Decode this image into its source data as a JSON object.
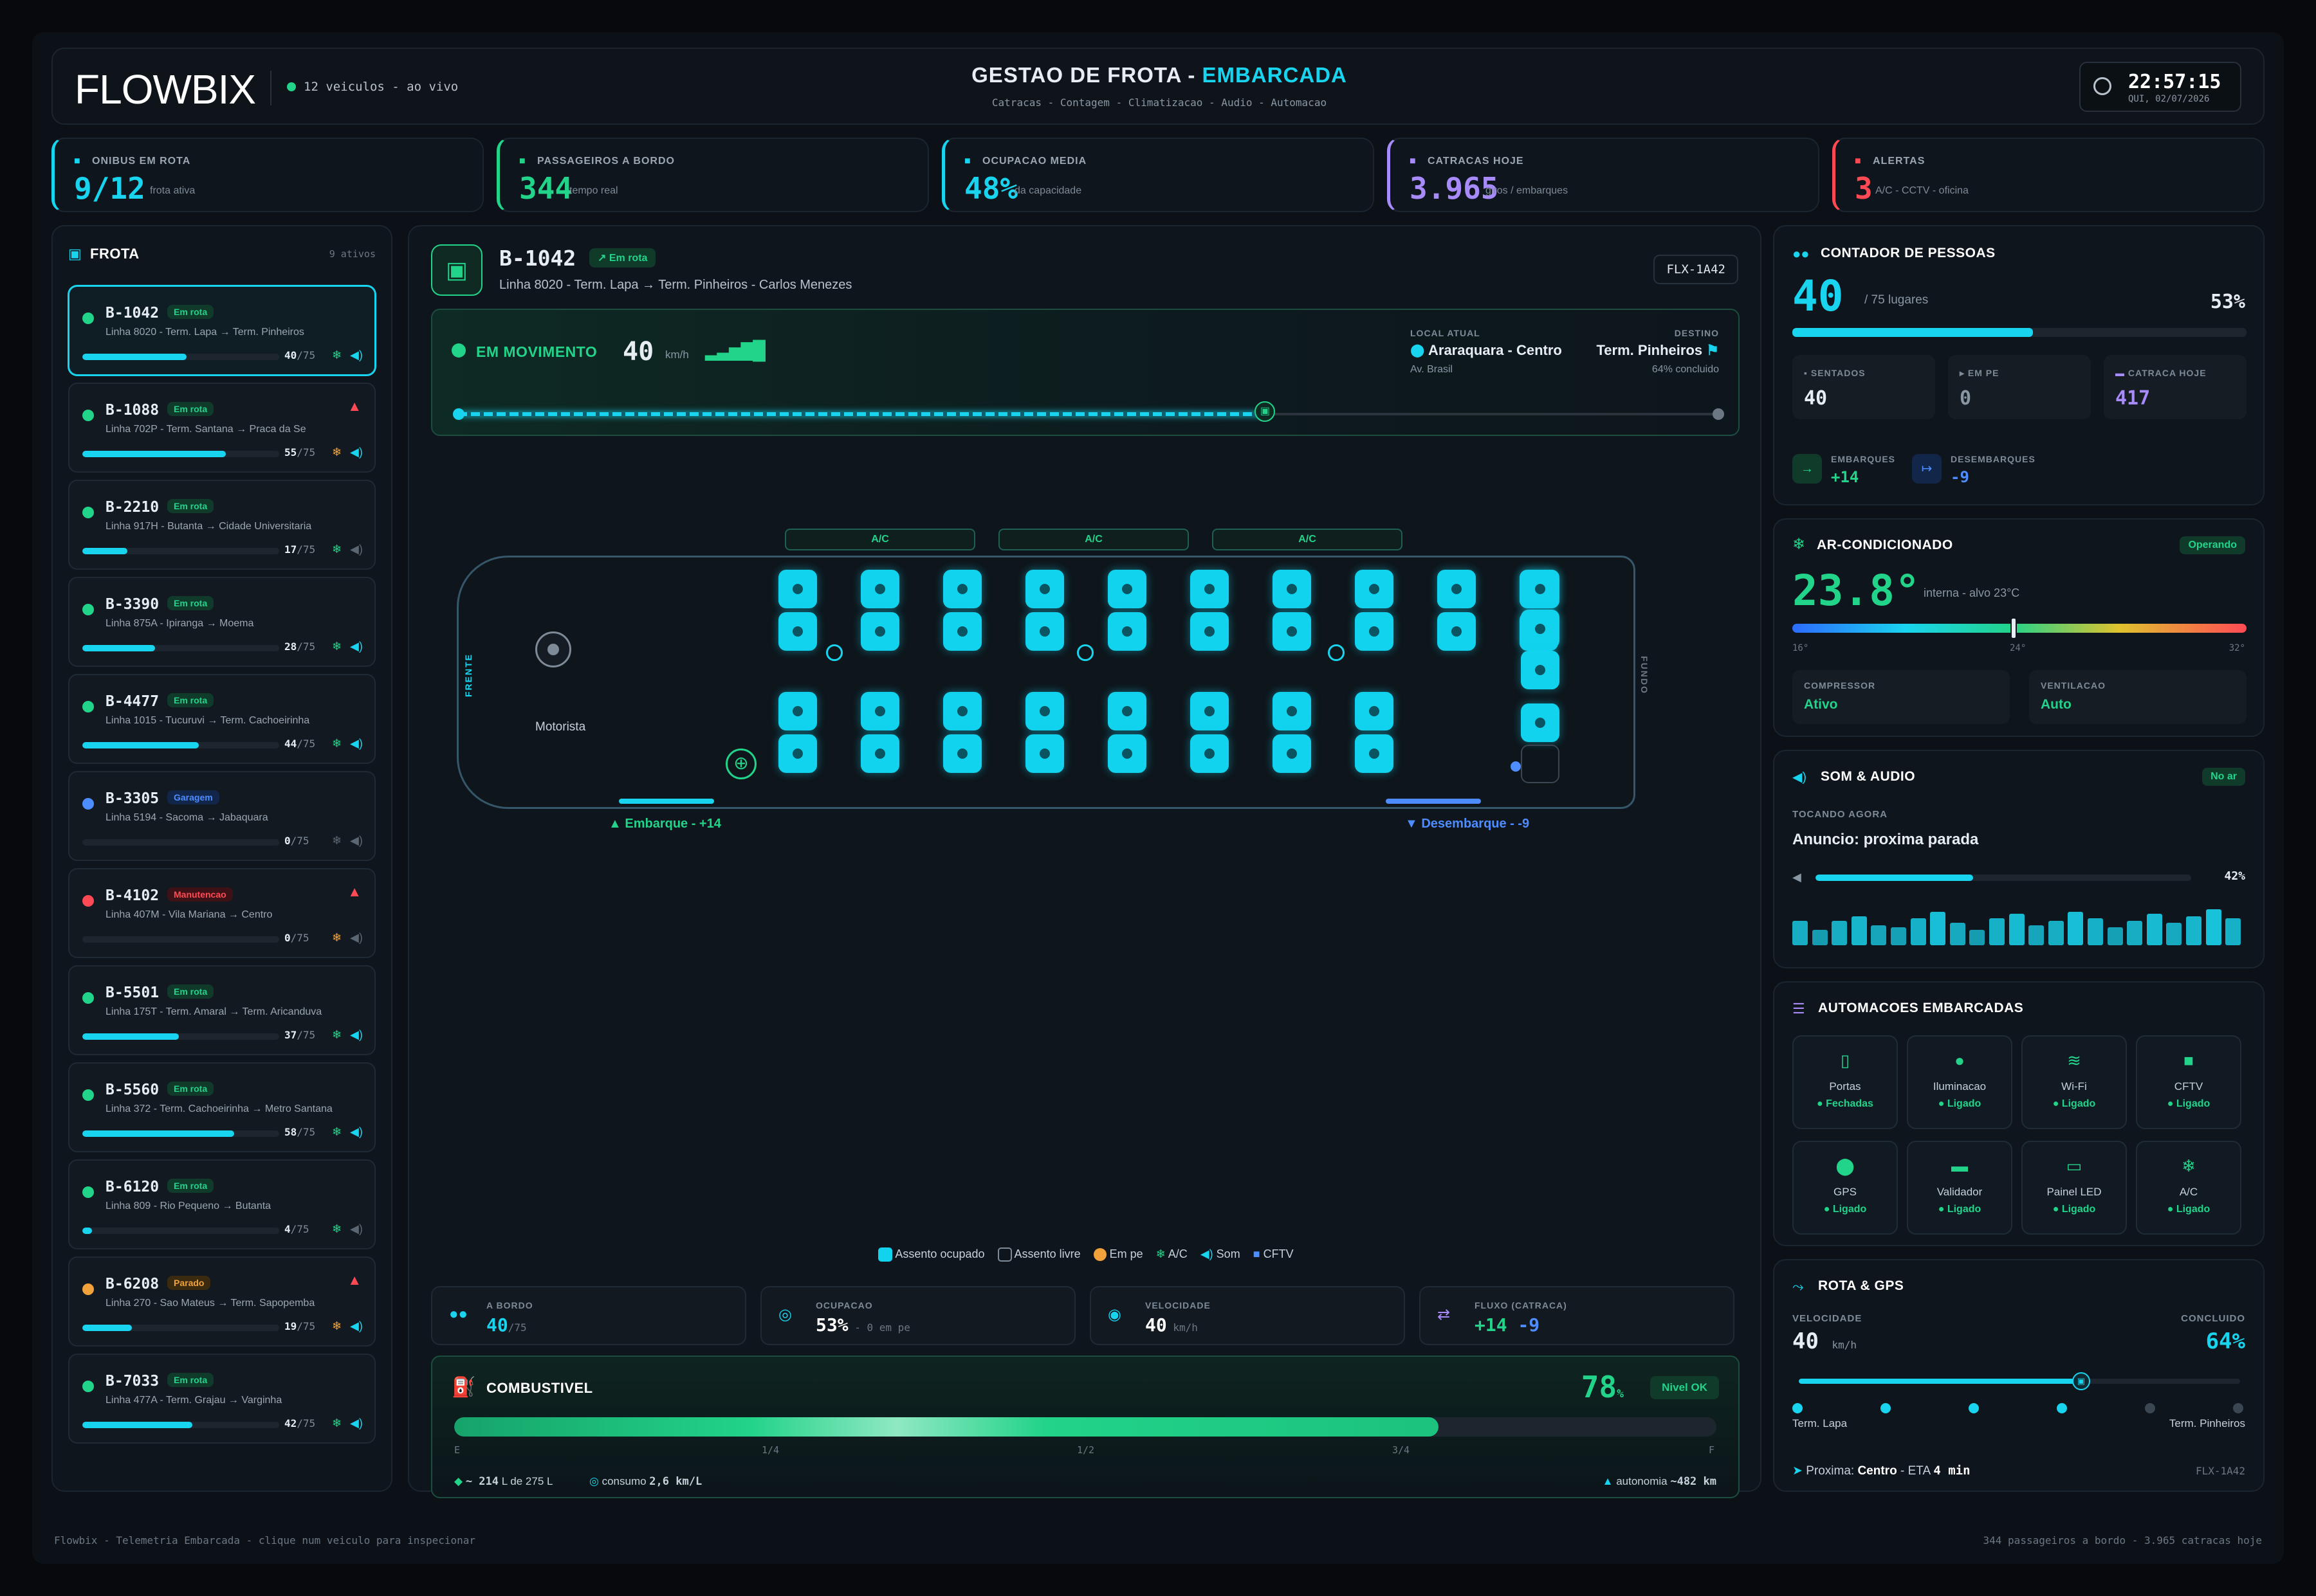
{
  "header": {
    "logo": "FLOWBIX",
    "live": "12 veiculos - ao vivo",
    "title_a": "GESTAO DE FROTA - ",
    "title_b": "EMBARCADA",
    "subtitle": "Catracas - Contagem - Climatizacao - Audio - Automacao",
    "time": "22:57:15",
    "date": "QUI, 02/07/2026"
  },
  "kpis": [
    {
      "label": "ONIBUS EM ROTA",
      "value": "9/12",
      "sub": "frota ativa",
      "color": "#19d4ee"
    },
    {
      "label": "PASSAGEIROS A BORDO",
      "value": "344",
      "sub": "tempo real",
      "color": "#22d38a"
    },
    {
      "label": "OCUPACAO MEDIA",
      "value": "48%",
      "sub": "da capacidade",
      "color": "#19d4ee"
    },
    {
      "label": "CATRACAS HOJE",
      "value": "3.965",
      "sub": "giros / embarques",
      "color": "#a78bfa"
    },
    {
      "label": "ALERTAS",
      "value": "3",
      "sub": "A/C - CCTV - oficina",
      "color": "#ff4a55"
    }
  ],
  "fleet": {
    "title": "FROTA",
    "count": "9 ativos",
    "items": [
      {
        "id": "B-1042",
        "status": "Em rota",
        "sc": "green",
        "line": "Linha 8020 - Term. Lapa → Term. Pinheiros",
        "count": "40",
        "cap": "/75",
        "fill": 0.53,
        "dot": "#22d38a",
        "ac": "#22d38a",
        "snd": "#19d4ee",
        "warn": ""
      },
      {
        "id": "B-1088",
        "status": "Em rota",
        "sc": "green",
        "line": "Linha 702P - Term. Santana → Praca da Se",
        "count": "55",
        "cap": "/75",
        "fill": 0.73,
        "dot": "#22d38a",
        "ac": "#f2a23a",
        "snd": "#19d4ee",
        "warn": "▲"
      },
      {
        "id": "B-2210",
        "status": "Em rota",
        "sc": "green",
        "line": "Linha 917H - Butanta → Cidade Universitaria",
        "count": "17",
        "cap": "/75",
        "fill": 0.23,
        "dot": "#22d38a",
        "ac": "#22d38a",
        "snd": "#5a6672",
        "warn": ""
      },
      {
        "id": "B-3390",
        "status": "Em rota",
        "sc": "green",
        "line": "Linha 875A - Ipiranga → Moema",
        "count": "28",
        "cap": "/75",
        "fill": 0.37,
        "dot": "#22d38a",
        "ac": "#22d38a",
        "snd": "#19d4ee",
        "warn": ""
      },
      {
        "id": "B-4477",
        "status": "Em rota",
        "sc": "green",
        "line": "Linha 1015 - Tucuruvi → Term. Cachoeirinha",
        "count": "44",
        "cap": "/75",
        "fill": 0.59,
        "dot": "#22d38a",
        "ac": "#22d38a",
        "snd": "#19d4ee",
        "warn": ""
      },
      {
        "id": "B-3305",
        "status": "Garagem",
        "sc": "blue",
        "line": "Linha 5194 - Sacoma → Jabaquara",
        "count": "0",
        "cap": "/75",
        "fill": 0,
        "dot": "#4d8dff",
        "ac": "#5a6672",
        "snd": "#5a6672",
        "warn": ""
      },
      {
        "id": "B-4102",
        "status": "Manutencao",
        "sc": "red",
        "line": "Linha 407M - Vila Mariana → Centro",
        "count": "0",
        "cap": "/75",
        "fill": 0,
        "dot": "#ff4a55",
        "ac": "#f2a23a",
        "snd": "#5a6672",
        "warn": "▲"
      },
      {
        "id": "B-5501",
        "status": "Em rota",
        "sc": "green",
        "line": "Linha 175T - Term. Amaral → Term. Aricanduva",
        "count": "37",
        "cap": "/75",
        "fill": 0.49,
        "dot": "#22d38a",
        "ac": "#22d38a",
        "snd": "#19d4ee",
        "warn": ""
      },
      {
        "id": "B-5560",
        "status": "Em rota",
        "sc": "green",
        "line": "Linha 372 - Term. Cachoeirinha → Metro Santana",
        "count": "58",
        "cap": "/75",
        "fill": 0.77,
        "dot": "#22d38a",
        "ac": "#22d38a",
        "snd": "#19d4ee",
        "warn": ""
      },
      {
        "id": "B-6120",
        "status": "Em rota",
        "sc": "green",
        "line": "Linha 809 - Rio Pequeno → Butanta",
        "count": "4",
        "cap": "/75",
        "fill": 0.05,
        "dot": "#22d38a",
        "ac": "#22d38a",
        "snd": "#5a6672",
        "warn": ""
      },
      {
        "id": "B-6208",
        "status": "Parado",
        "sc": "orange",
        "line": "Linha 270 - Sao Mateus → Term. Sapopemba",
        "count": "19",
        "cap": "/75",
        "fill": 0.25,
        "dot": "#f2a23a",
        "ac": "#f2a23a",
        "snd": "#19d4ee",
        "warn": "▲"
      },
      {
        "id": "B-7033",
        "status": "Em rota",
        "sc": "green",
        "line": "Linha 477A - Term. Grajau → Varginha",
        "count": "42",
        "cap": "/75",
        "fill": 0.56,
        "dot": "#22d38a",
        "ac": "#22d38a",
        "snd": "#19d4ee",
        "warn": ""
      }
    ]
  },
  "bus": {
    "id": "B-1042",
    "status": "Em rota",
    "desc": "Linha 8020 - Term. Lapa → Term. Pinheiros - Carlos Menezes",
    "plate": "FLX-1A42",
    "moving": "EM MOVIMENTO",
    "speed": "40",
    "speed_unit": "km/h",
    "loc_label": "LOCAL ATUAL",
    "loc": "Araraquara - Centro",
    "loc_sub": "Av. Brasil",
    "dest_label": "DESTINO",
    "dest": "Term. Pinheiros",
    "dest_sub": "64% concluido",
    "progress": 0.64,
    "ac": "A/C",
    "front": "FRENTE",
    "back": "FUNDO",
    "driver": "Motorista",
    "board": "▲ Embarque - +14",
    "alight": "▼ Desembarque - -9",
    "legend": [
      "Assento ocupado",
      "Assento livre",
      "Em pe",
      "A/C",
      "Som",
      "CFTV"
    ]
  },
  "stats": [
    {
      "label": "A BORDO",
      "value": "40",
      "unit": "/75"
    },
    {
      "label": "OCUPACAO",
      "value": "53%",
      "unit": " - 0 em pe"
    },
    {
      "label": "VELOCIDADE",
      "value": "40",
      "unit": " km/h"
    },
    {
      "label": "FLUXO (CATRACA)",
      "value": "+14",
      "value2": "-9"
    }
  ],
  "fuel": {
    "title": "COMBUSTIVEL",
    "pct": "78",
    "pct_unit": "%",
    "level": 0.78,
    "status": "Nivel OK",
    "ticks": [
      "E",
      "1/4",
      "1/2",
      "3/4",
      "F"
    ],
    "liters": "~ 214",
    "liters_sub": "L de 275 L",
    "cons_label": "consumo",
    "cons": "2,6 km/L",
    "aut_label": "autonomia",
    "aut": "~482 km"
  },
  "people": {
    "title": "CONTADOR DE PESSOAS",
    "count": "40",
    "cap": "/ 75 lugares",
    "pct": "53%",
    "level": 0.53,
    "seated_l": "SENTADOS",
    "seated": "40",
    "stand_l": "EM PE",
    "stand": "0",
    "turn_l": "CATRACA HOJE",
    "turn": "417",
    "emb_l": "EMBARQUES",
    "emb": "+14",
    "des_l": "DESEMBARQUES",
    "des": "-9"
  },
  "ac": {
    "title": "AR-CONDICIONADO",
    "status": "Operando",
    "temp": "23.8°",
    "sub": "interna - alvo 23°C",
    "t1": "16°",
    "t2": "24°",
    "t3": "32°",
    "temp_val": 23.8,
    "comp_l": "COMPRESSOR",
    "comp": "Ativo",
    "vent_l": "VENTILACAO",
    "vent": "Auto"
  },
  "sound": {
    "title": "SOM & AUDIO",
    "status": "No ar",
    "now_l": "TOCANDO AGORA",
    "now": "Anuncio: proxima parada",
    "vol": "42%",
    "level": 0.42,
    "eq": [
      0.55,
      0.35,
      0.55,
      0.65,
      0.45,
      0.4,
      0.6,
      0.75,
      0.5,
      0.35,
      0.6,
      0.7,
      0.45,
      0.55,
      0.75,
      0.6,
      0.4,
      0.55,
      0.7,
      0.5,
      0.65,
      0.8,
      0.6
    ]
  },
  "automation": {
    "title": "AUTOMACOES EMBARCADAS",
    "items": [
      {
        "icon": "door-icon",
        "glyph": "▯",
        "name": "Portas",
        "state": "Fechadas"
      },
      {
        "icon": "bulb-icon",
        "glyph": "●",
        "name": "Iluminacao",
        "state": "Ligado"
      },
      {
        "icon": "wifi-icon",
        "glyph": "≋",
        "name": "Wi-Fi",
        "state": "Ligado"
      },
      {
        "icon": "camera-icon",
        "glyph": "■",
        "name": "CFTV",
        "state": "Ligado"
      },
      {
        "icon": "pin-icon",
        "glyph": "⬤",
        "name": "GPS",
        "state": "Ligado"
      },
      {
        "icon": "card-icon",
        "glyph": "▬",
        "name": "Validador",
        "state": "Ligado"
      },
      {
        "icon": "monitor-icon",
        "glyph": "▭",
        "name": "Painel LED",
        "state": "Ligado"
      },
      {
        "icon": "snowflake-icon",
        "glyph": "❄",
        "name": "A/C",
        "state": "Ligado"
      }
    ]
  },
  "route": {
    "title": "ROTA & GPS",
    "speed_l": "VELOCIDADE",
    "speed": "40",
    "speed_unit": "km/h",
    "done_l": "CONCLUIDO",
    "done": "64%",
    "level": 0.64,
    "from": "Term. Lapa",
    "to": "Term. Pinheiros",
    "next_l": "Proxima:",
    "next": "Centro",
    "eta_l": "- ETA",
    "eta": "4 min",
    "plate": "FLX-1A42"
  },
  "footer": {
    "left": "Flowbix - Telemetria Embarcada - clique num veiculo para inspecionar",
    "right": "344 passageiros a bordo - 3.965 catracas hoje"
  },
  "colors": {
    "accent": "#19d4ee",
    "green": "#22d38a",
    "red": "#ff4a55",
    "purple": "#a78bfa",
    "orange": "#f2a23a",
    "blue": "#4d8dff"
  }
}
